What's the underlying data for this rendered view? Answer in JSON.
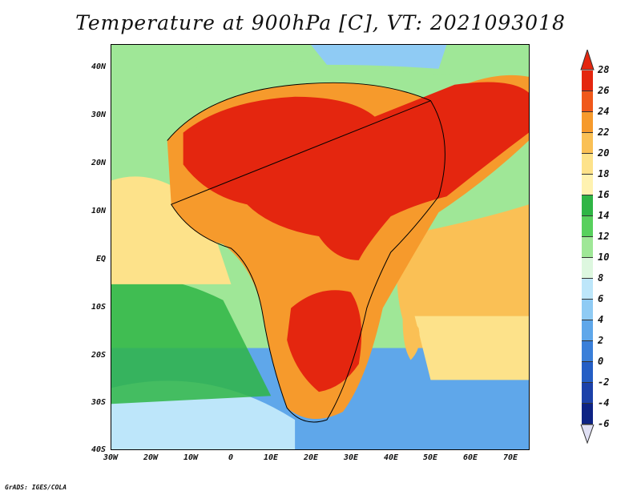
{
  "title": "Temperature at 900hPa [C], VT: 2021093018",
  "footer": "GrADS: IGES/COLA",
  "axes": {
    "y_ticks": [
      "40N",
      "30N",
      "20N",
      "10N",
      "EQ",
      "10S",
      "20S",
      "30S",
      "40S"
    ],
    "x_ticks": [
      "30W",
      "20W",
      "10W",
      "0",
      "10E",
      "20E",
      "30E",
      "40E",
      "50E",
      "60E",
      "70E"
    ],
    "lat_range": [
      -40,
      45
    ],
    "lon_range": [
      -30,
      75
    ]
  },
  "colorbar": {
    "labels": [
      "28",
      "26",
      "24",
      "22",
      "20",
      "18",
      "16",
      "14",
      "12",
      "10",
      "8",
      "6",
      "4",
      "2",
      "0",
      "-2",
      "-4",
      "-6"
    ],
    "colors": [
      "#e4260f",
      "#f0581a",
      "#f69a2c",
      "#fac055",
      "#fde28a",
      "#fff2b0",
      "#2fb545",
      "#58d05d",
      "#9fe797",
      "#ddf7df",
      "#bde6fa",
      "#8fcbf4",
      "#5fa7ea",
      "#3a7fd9",
      "#245ec5",
      "#1b41a9",
      "#0d2384",
      "#e0e0f4"
    ]
  }
}
